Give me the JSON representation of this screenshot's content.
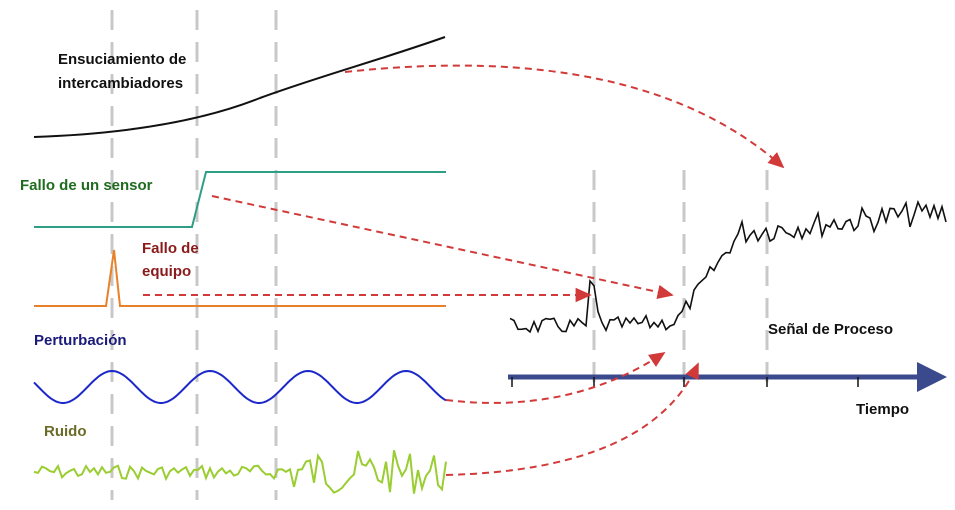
{
  "labels": {
    "fouling_line1": "Ensuciamiento de",
    "fouling_line2": "intercambiadores",
    "sensor_fault": "Fallo de un sensor",
    "equipment_fault_line1": "Fallo de",
    "equipment_fault_line2": "equipo",
    "disturbance": "Perturbación",
    "noise": "Ruido",
    "process_signal": "Señal de Proceso",
    "time_axis": "Tiempo"
  },
  "colors": {
    "fouling": "#111111",
    "sensor_fault": "#2e9e86",
    "equipment_fault": "#e8822a",
    "disturbance": "#1c28c8",
    "noise": "#9acd32",
    "process_signal": "#111111",
    "arrows": "#d23a3a",
    "time_axis": "#3b4a8c",
    "guides": "#c8c8c8",
    "label_sensor": "#1f6b1f",
    "label_equipment": "#8b1a1a",
    "label_disturbance": "#1a1a7a",
    "label_noise": "#6b6b2a"
  }
}
